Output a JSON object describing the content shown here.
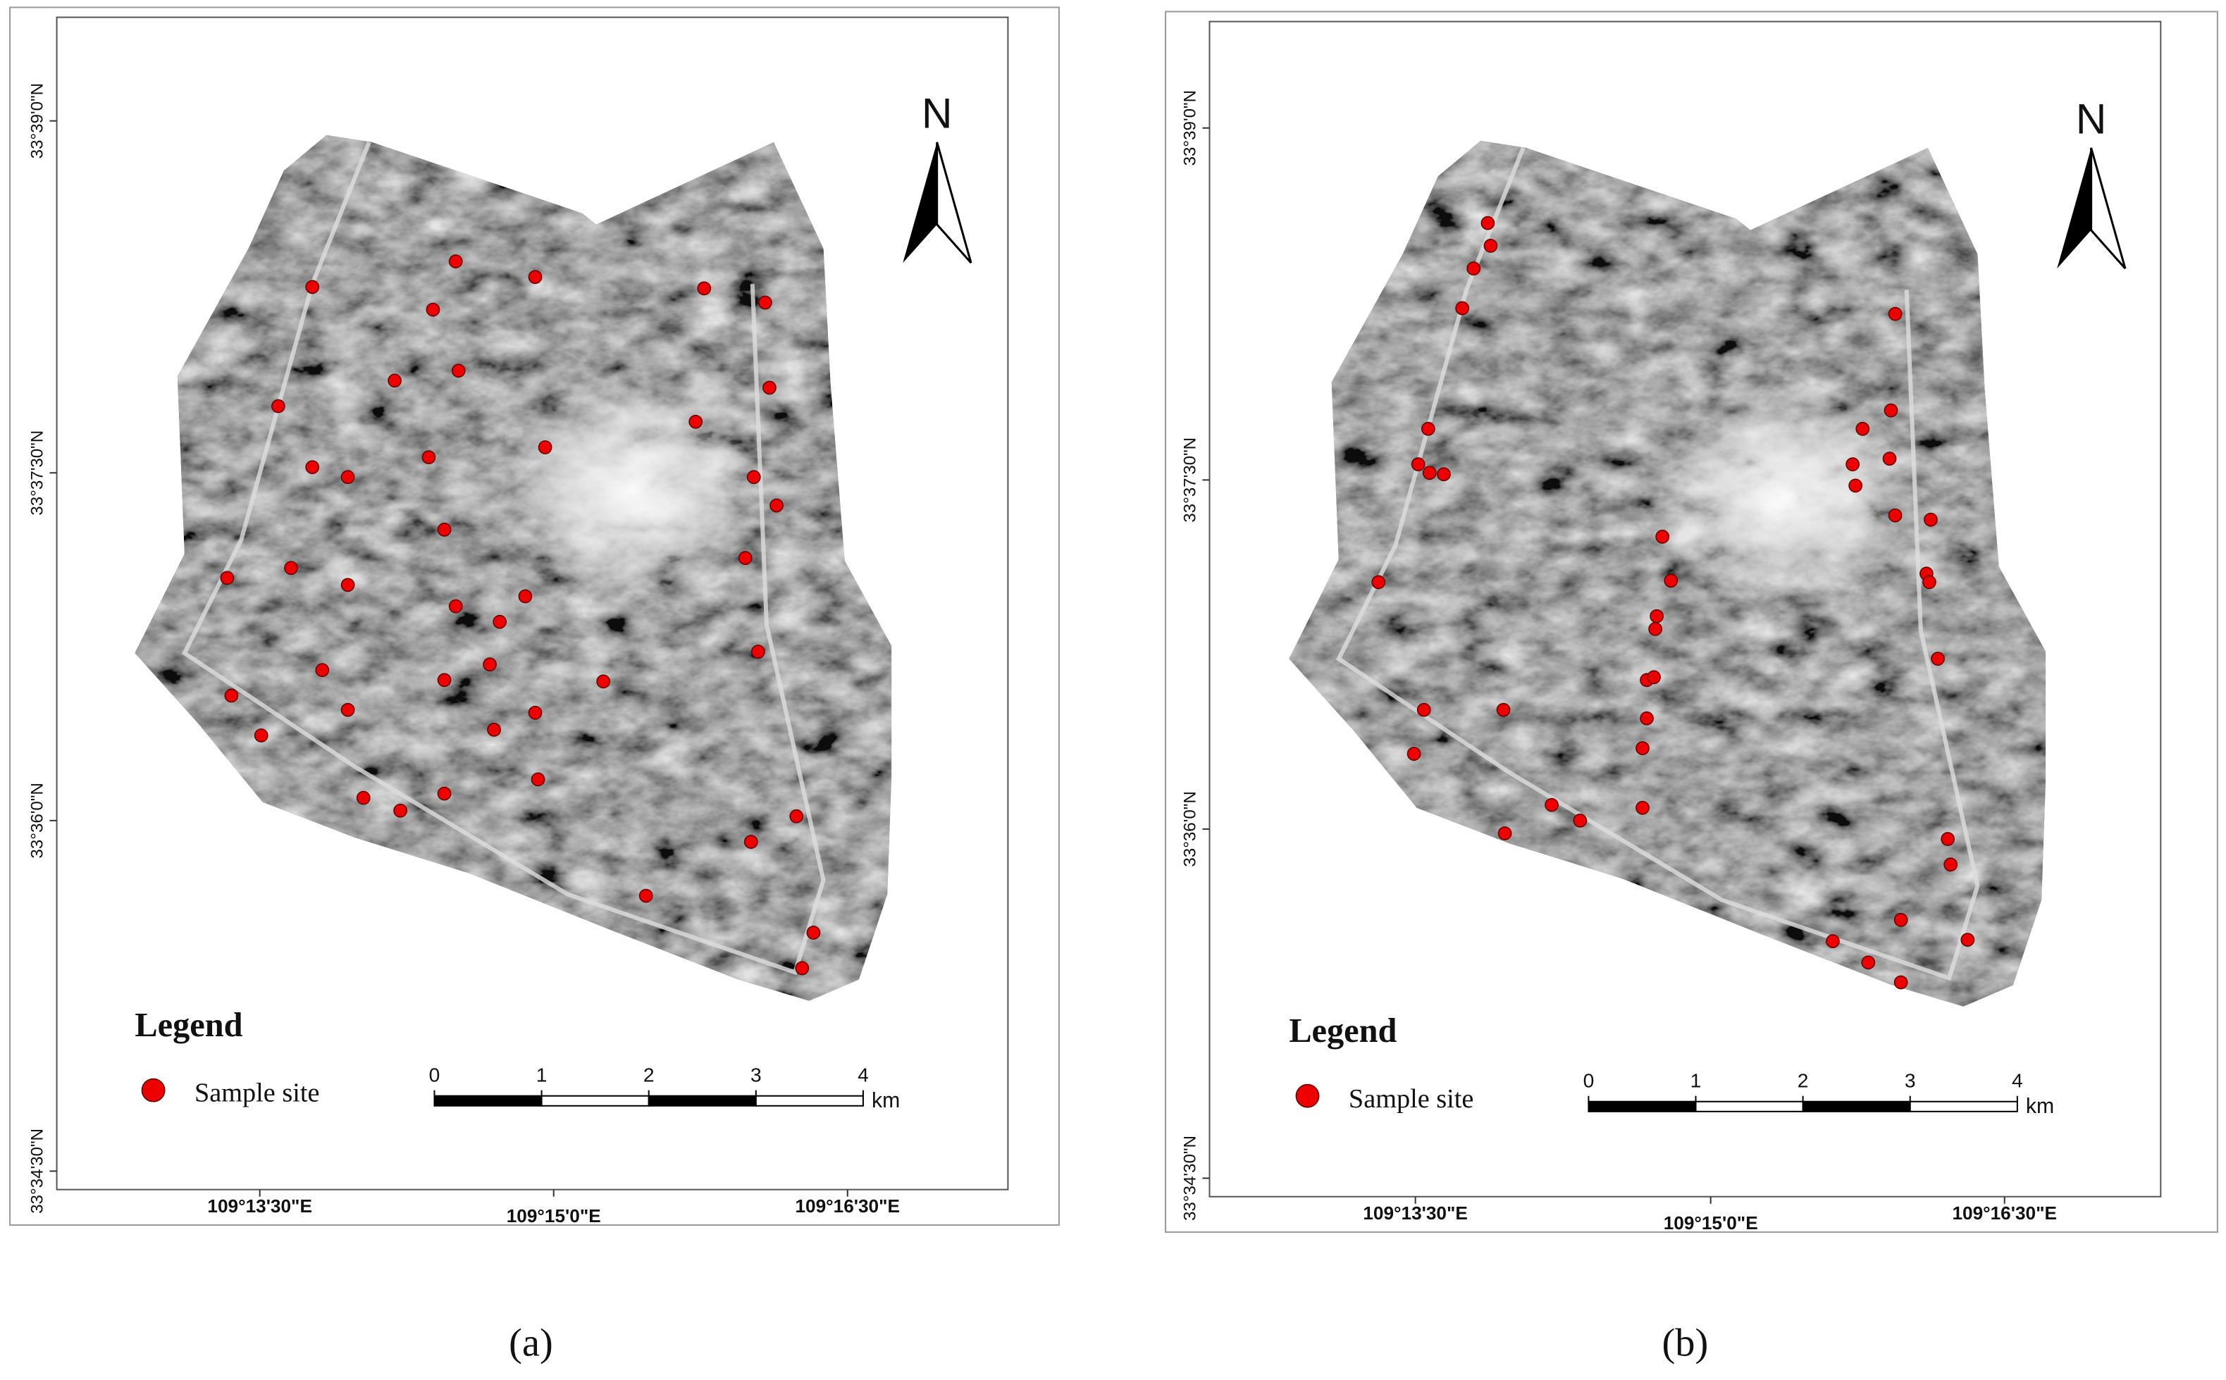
{
  "panels": [
    {
      "label": "(a)",
      "north": "N",
      "legend_title": "Legend",
      "legend_item": "Sample site",
      "scale_ticks": [
        0,
        1,
        2,
        3,
        4
      ],
      "scale_unit": "km",
      "lat_labels": [
        "33°39'0\"N",
        "33°37'30\"N",
        "33°36'0\"N",
        "33°34'30\"N"
      ],
      "lon_labels": [
        "109°13'30\"E",
        "109°15'0\"E",
        "109°16'30\"E"
      ]
    },
    {
      "label": "(b)",
      "north": "N",
      "legend_title": "Legend",
      "legend_item": "Sample site",
      "scale_ticks": [
        0,
        1,
        2,
        3,
        4
      ],
      "scale_unit": "km",
      "lat_labels": [
        "33°39'0\"N",
        "33°37'30\"N",
        "33°36'0\"N",
        "33°34'30\"N"
      ],
      "lon_labels": [
        "109°13'30\"E",
        "109°15'0\"E",
        "109°16'30\"E"
      ]
    }
  ]
}
